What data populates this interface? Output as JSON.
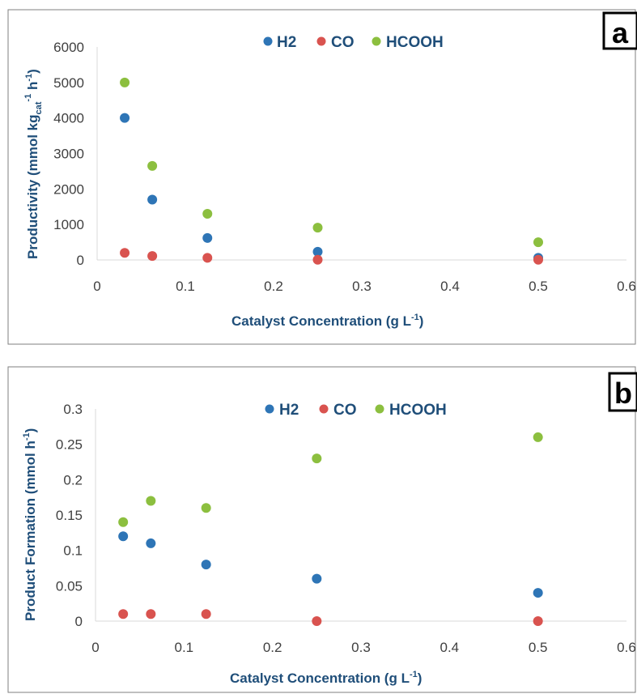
{
  "colors": {
    "H2": "#2e75b6",
    "CO": "#d9534f",
    "HCOOH": "#8cbf3f"
  },
  "chart_data": [
    {
      "type": "scatter",
      "panel_label": "a",
      "xlabel_main": "Catalyst Concentration (g L",
      "xlabel_sup": "-1",
      "xlabel_end": ")",
      "ylabel_main": "Productivity (mmol kg",
      "ylabel_sub": "cat",
      "ylabel_sup1": "-1",
      "ylabel_mid": " h",
      "ylabel_sup2": "-1",
      "ylabel_end": ")",
      "xlim": [
        0,
        0.6
      ],
      "ylim": [
        0,
        6000
      ],
      "xticks": [
        "0",
        "0.1",
        "0.2",
        "0.3",
        "0.4",
        "0.5",
        "0.6"
      ],
      "yticks": [
        "0",
        "1000",
        "2000",
        "3000",
        "4000",
        "5000",
        "6000"
      ],
      "legend_position": "top-center",
      "x": [
        0.03125,
        0.0625,
        0.125,
        0.25,
        0.5
      ],
      "series": [
        {
          "name": "H2",
          "values": [
            4000,
            1700,
            620,
            230,
            60
          ]
        },
        {
          "name": "CO",
          "values": [
            200,
            110,
            60,
            5,
            5
          ]
        },
        {
          "name": "HCOOH",
          "values": [
            5000,
            2650,
            1300,
            910,
            500
          ]
        }
      ]
    },
    {
      "type": "scatter",
      "panel_label": "b",
      "xlabel_main": "Catalyst Concentration (g L",
      "xlabel_sup": "-1",
      "xlabel_end": ")",
      "ylabel_main": "Product Formation (mmol h",
      "ylabel_sup1": "-1",
      "ylabel_end": ")",
      "xlim": [
        0,
        0.6
      ],
      "ylim": [
        0,
        0.3
      ],
      "xticks": [
        "0",
        "0.1",
        "0.2",
        "0.3",
        "0.4",
        "0.5",
        "0.6"
      ],
      "yticks": [
        "0",
        "0.05",
        "0.1",
        "0.15",
        "0.2",
        "0.25",
        "0.3"
      ],
      "legend_position": "top-center",
      "x": [
        0.03125,
        0.0625,
        0.125,
        0.25,
        0.5
      ],
      "series": [
        {
          "name": "H2",
          "values": [
            0.12,
            0.11,
            0.08,
            0.06,
            0.04
          ]
        },
        {
          "name": "CO",
          "values": [
            0.01,
            0.01,
            0.01,
            0.0,
            0.0
          ]
        },
        {
          "name": "HCOOH",
          "values": [
            0.14,
            0.17,
            0.16,
            0.23,
            0.26
          ]
        }
      ]
    }
  ]
}
